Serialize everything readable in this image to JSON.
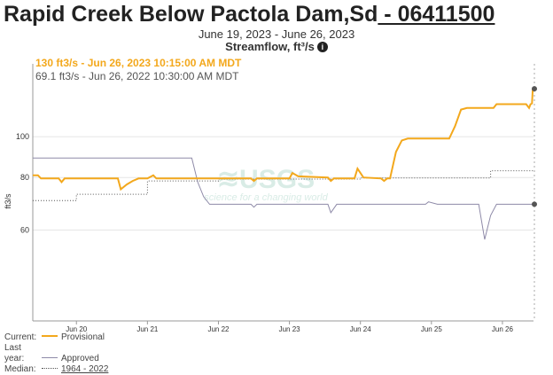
{
  "title": {
    "name": "Rapid Creek Below Pactola Dam,Sd",
    "site": " - 06411500"
  },
  "date_range": "June 19, 2023 - June 26, 2023",
  "parameter": "Streamflow, ft³/s",
  "tooltip": {
    "current": "130 ft3/s - Jun 26, 2023 10:15:00 AM MDT",
    "last_year": "69.1 ft3/s - Jun 26, 2022 10:30:00 AM MDT"
  },
  "legend": {
    "current_label": "Current:",
    "current_series": "Provisional",
    "last_year_label": "Last year:",
    "last_year_series": "Approved",
    "median_label": "Median:",
    "median_series": "1964 - 2022"
  },
  "colors": {
    "current": "#f3a81c",
    "last_year": "#8e8aa8",
    "median": "#555555",
    "grid": "#e6e6e6"
  },
  "chart_data": {
    "type": "line",
    "xlabel": "",
    "ylabel": "ft3/s",
    "y_scale": "log",
    "ylim": [
      36.5,
      149
    ],
    "xlim": [
      "06-19 09:15",
      "06-26 10:30"
    ],
    "x_ticks": [
      "Jun 20",
      "Jun 21",
      "Jun 22",
      "Jun 23",
      "Jun 24",
      "Jun 25",
      "Jun 26"
    ],
    "y_ticks": [
      60,
      80,
      100
    ],
    "grid": true,
    "watermark": "USGS science for a changing world",
    "series": [
      {
        "name": "Provisional",
        "key": "current",
        "points": [
          [
            "06-19 09:15",
            81
          ],
          [
            "06-19 11:00",
            81
          ],
          [
            "06-19 12:00",
            79.6
          ],
          [
            "06-19 18:00",
            79.6
          ],
          [
            "06-19 19:00",
            78
          ],
          [
            "06-19 20:00",
            79.6
          ],
          [
            "06-20 14:00",
            79.6
          ],
          [
            "06-20 15:00",
            75
          ],
          [
            "06-20 17:00",
            77
          ],
          [
            "06-20 19:00",
            78.5
          ],
          [
            "06-20 21:00",
            79.6
          ],
          [
            "06-21 00:00",
            79.6
          ],
          [
            "06-21 02:00",
            81
          ],
          [
            "06-21 03:00",
            79.6
          ],
          [
            "06-22 11:00",
            79.6
          ],
          [
            "06-22 12:00",
            78.5
          ],
          [
            "06-22 13:00",
            79.6
          ],
          [
            "06-23 00:00",
            79.6
          ],
          [
            "06-23 01:00",
            82
          ],
          [
            "06-23 03:00",
            80.5
          ],
          [
            "06-23 13:00",
            80
          ],
          [
            "06-23 14:00",
            78.5
          ],
          [
            "06-23 15:00",
            79.6
          ],
          [
            "06-23 22:00",
            79.6
          ],
          [
            "06-23 23:00",
            84
          ],
          [
            "06-24 01:00",
            80
          ],
          [
            "06-24 07:00",
            79.6
          ],
          [
            "06-24 08:00",
            78.5
          ],
          [
            "06-24 09:00",
            79.6
          ],
          [
            "06-24 10:00",
            79.6
          ],
          [
            "06-24 12:00",
            92
          ],
          [
            "06-24 14:00",
            98
          ],
          [
            "06-24 16:00",
            99
          ],
          [
            "06-25 02:00",
            99
          ],
          [
            "06-25 04:00",
            99
          ],
          [
            "06-25 06:00",
            99
          ],
          [
            "06-25 08:00",
            106
          ],
          [
            "06-25 10:00",
            116
          ],
          [
            "06-25 12:00",
            117
          ],
          [
            "06-25 21:00",
            117
          ],
          [
            "06-25 22:00",
            119.5
          ],
          [
            "06-26 08:00",
            119.5
          ],
          [
            "06-26 09:00",
            117
          ],
          [
            "06-26 09:30",
            119.5
          ],
          [
            "06-26 10:00",
            120
          ],
          [
            "06-26 10:15",
            130
          ]
        ]
      },
      {
        "name": "Approved",
        "key": "last_year",
        "points": [
          [
            "06-19 09:15",
            89
          ],
          [
            "06-21 15:00",
            89
          ],
          [
            "06-21 17:00",
            78
          ],
          [
            "06-21 19:00",
            72
          ],
          [
            "06-21 21:00",
            69.1
          ],
          [
            "06-22 11:00",
            69.1
          ],
          [
            "06-22 12:00",
            68
          ],
          [
            "06-22 13:00",
            69.1
          ],
          [
            "06-23 13:00",
            69.1
          ],
          [
            "06-23 14:00",
            66
          ],
          [
            "06-23 16:00",
            69.1
          ],
          [
            "06-24 22:00",
            69.1
          ],
          [
            "06-24 23:00",
            70
          ],
          [
            "06-25 02:00",
            69.1
          ],
          [
            "06-25 16:00",
            69.1
          ],
          [
            "06-25 18:00",
            57
          ],
          [
            "06-25 20:00",
            65
          ],
          [
            "06-25 22:00",
            69.1
          ],
          [
            "06-26 10:30",
            69.1
          ]
        ]
      },
      {
        "name": "1964 - 2022",
        "key": "median",
        "points": [
          [
            "06-19 09:15",
            70.5
          ],
          [
            "06-20 00:00",
            70.5
          ],
          [
            "06-20 00:00",
            73
          ],
          [
            "06-21 00:00",
            73
          ],
          [
            "06-21 00:00",
            78.5
          ],
          [
            "06-22 00:00",
            78.5
          ],
          [
            "06-22 00:00",
            79.3
          ],
          [
            "06-24 00:00",
            79.3
          ],
          [
            "06-24 00:00",
            79.8
          ],
          [
            "06-25 20:00",
            79.8
          ],
          [
            "06-25 20:00",
            83
          ],
          [
            "06-26 10:30",
            83
          ]
        ]
      }
    ]
  }
}
